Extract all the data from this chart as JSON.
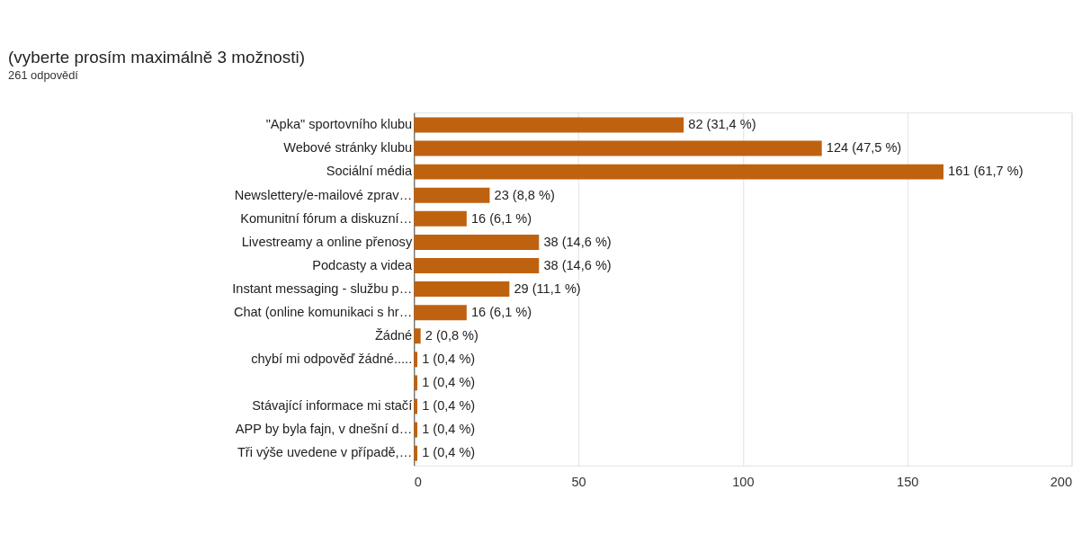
{
  "chart_data": {
    "type": "bar",
    "orientation": "horizontal",
    "title": "(vyberte prosím maximálně 3 možnosti)",
    "subtitle": "261 odpovědí",
    "categories": [
      "\"Apka\" sportovního klubu",
      "Webové stránky klubu",
      "Sociální média",
      "Newslettery/e-mailové zprav…",
      "Komunitní fórum a diskuzní…",
      "Livestreamy a online přenosy",
      "Podcasty a videa",
      "Instant messaging - službu p…",
      "Chat (online komunikaci s hr…",
      "Žádné",
      "chybí mi odpověď žádné.....",
      null,
      "Stávající informace mi stačí",
      "APP by byla fajn, v dnešní d…",
      "Tři výše uvedene v případě,…"
    ],
    "values": [
      82,
      124,
      161,
      23,
      16,
      38,
      38,
      29,
      16,
      2,
      1,
      1,
      1,
      1,
      1
    ],
    "value_labels": [
      "82 (31,4 %)",
      "124 (47,5 %)",
      "161 (61,7 %)",
      "23 (8,8 %)",
      "16 (6,1 %)",
      "38 (14,6 %)",
      "38 (14,6 %)",
      "29 (11,1 %)",
      "16 (6,1 %)",
      "2 (0,8 %)",
      "1 (0,4 %)",
      "1 (0,4 %)",
      "1 (0,4 %)",
      "1 (0,4 %)",
      "1 (0,4 %)"
    ],
    "color": "#bf6210",
    "xlim": [
      0,
      200
    ],
    "xticks": [
      0,
      50,
      100,
      150,
      200
    ],
    "grid": "x"
  }
}
